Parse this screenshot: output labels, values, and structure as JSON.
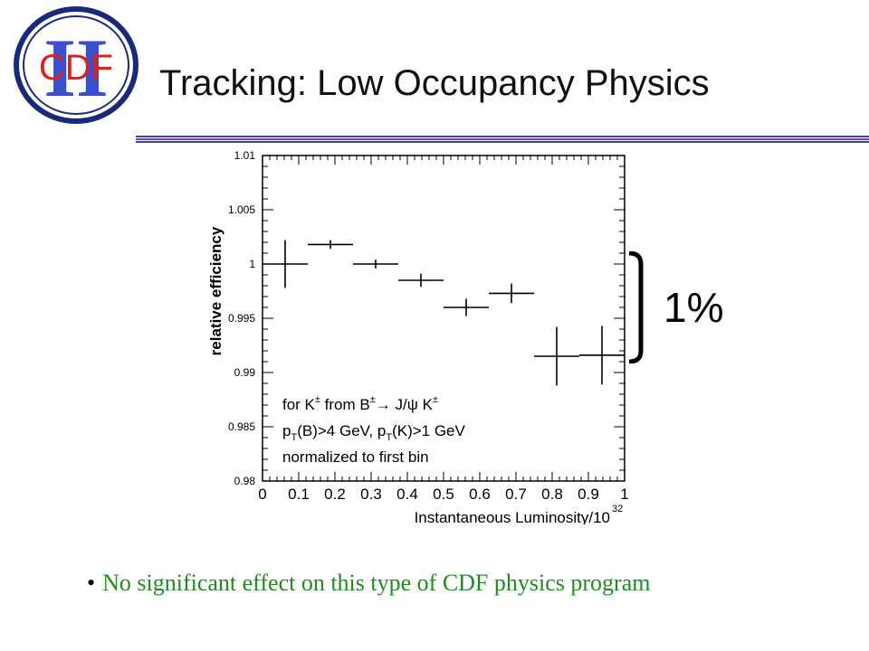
{
  "slide": {
    "title": "Tracking: Low Occupancy Physics",
    "logo_text": "CDF",
    "logo_numeral": "II",
    "bullet": "No significant effect on this type of CDF physics program",
    "bracket_label": "1%",
    "colors": {
      "logo_ring": "#1a2a7a",
      "logo_text": "#e0201c",
      "logo_numeral": "#3a4fd0",
      "rule_blue": "#3344aa",
      "rule_purple": "#8a3a8a",
      "bullet_text": "#1e8c1e"
    }
  },
  "chart_data": {
    "type": "scatter",
    "xlabel": "Instantaneous Luminosity/10",
    "xlabel_exponent": "32",
    "ylabel": "relative efficiency",
    "xlim": [
      0,
      1
    ],
    "ylim": [
      0.98,
      1.01
    ],
    "xticks": [
      "0",
      "0.1",
      "0.2",
      "0.3",
      "0.4",
      "0.5",
      "0.6",
      "0.7",
      "0.8",
      "0.9",
      "1"
    ],
    "yticks": [
      "0.98",
      "0.985",
      "0.99",
      "0.995",
      "1",
      "1.005",
      "1.01"
    ],
    "grid": false,
    "points": [
      {
        "x": 0.0625,
        "xerr": 0.0625,
        "y": 1.0,
        "yerr": 0.0022
      },
      {
        "x": 0.1875,
        "xerr": 0.0625,
        "y": 1.0018,
        "yerr": 0.0004
      },
      {
        "x": 0.3125,
        "xerr": 0.0625,
        "y": 1.0,
        "yerr": 0.0004
      },
      {
        "x": 0.4375,
        "xerr": 0.0625,
        "y": 0.9985,
        "yerr": 0.0006
      },
      {
        "x": 0.5625,
        "xerr": 0.0625,
        "y": 0.996,
        "yerr": 0.0008
      },
      {
        "x": 0.6875,
        "xerr": 0.0625,
        "y": 0.9973,
        "yerr": 0.0009
      },
      {
        "x": 0.8125,
        "xerr": 0.0625,
        "y": 0.9915,
        "yerr": 0.0027
      },
      {
        "x": 0.9375,
        "xerr": 0.0625,
        "y": 0.9916,
        "yerr": 0.0027
      }
    ],
    "annotation": [
      "for K± from B±→ J/ψ K±",
      "pT(B)>4 GeV,  pT(K)>1 GeV",
      "normalized to first bin"
    ]
  }
}
